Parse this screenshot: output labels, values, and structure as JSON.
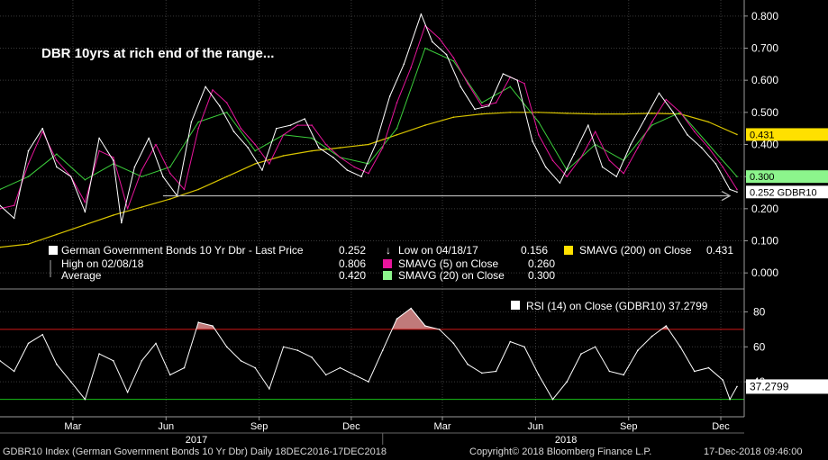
{
  "chart_data": [
    {
      "type": "line",
      "title": "DBR 10yrs at rich end of the range...",
      "ylim": [
        -0.05,
        0.85
      ],
      "yticks": [
        "0.800",
        "0.700",
        "0.600",
        "0.500",
        "0.400",
        "0.300",
        "0.200",
        "0.100",
        "0.000"
      ],
      "ytick_values": [
        0.8,
        0.7,
        0.6,
        0.5,
        0.4,
        0.3,
        0.2,
        0.1,
        0.0
      ],
      "x_range": [
        "2016-12-19",
        "2018-12-17"
      ],
      "series": [
        {
          "name": "German Government Bonds 10 Yr Dbr - Last Price",
          "color": "#ffffff",
          "value": "0.252",
          "x": [
            "2016-12-19",
            "2017-01-02",
            "2017-01-16",
            "2017-01-30",
            "2017-02-13",
            "2017-02-27",
            "2017-03-13",
            "2017-03-27",
            "2017-04-10",
            "2017-04-18",
            "2017-05-01",
            "2017-05-15",
            "2017-05-29",
            "2017-06-12",
            "2017-06-26",
            "2017-07-10",
            "2017-07-24",
            "2017-08-07",
            "2017-08-21",
            "2017-09-04",
            "2017-09-18",
            "2017-10-02",
            "2017-10-16",
            "2017-10-30",
            "2017-11-13",
            "2017-11-27",
            "2017-12-11",
            "2017-12-25",
            "2018-01-08",
            "2018-01-22",
            "2018-02-08",
            "2018-02-19",
            "2018-03-05",
            "2018-03-19",
            "2018-04-02",
            "2018-04-16",
            "2018-04-30",
            "2018-05-14",
            "2018-05-29",
            "2018-06-11",
            "2018-06-25",
            "2018-07-09",
            "2018-07-23",
            "2018-08-06",
            "2018-08-20",
            "2018-09-03",
            "2018-09-17",
            "2018-10-01",
            "2018-10-15",
            "2018-10-29",
            "2018-11-12",
            "2018-11-26",
            "2018-12-10",
            "2018-12-17"
          ],
          "values": [
            0.21,
            0.17,
            0.38,
            0.45,
            0.33,
            0.3,
            0.19,
            0.42,
            0.35,
            0.156,
            0.33,
            0.42,
            0.3,
            0.24,
            0.47,
            0.58,
            0.52,
            0.44,
            0.39,
            0.32,
            0.45,
            0.46,
            0.48,
            0.39,
            0.36,
            0.32,
            0.3,
            0.4,
            0.55,
            0.65,
            0.806,
            0.72,
            0.68,
            0.58,
            0.51,
            0.52,
            0.62,
            0.6,
            0.41,
            0.33,
            0.28,
            0.37,
            0.46,
            0.33,
            0.3,
            0.4,
            0.48,
            0.56,
            0.5,
            0.43,
            0.39,
            0.34,
            0.26,
            0.252
          ]
        },
        {
          "name": "SMAVG (5) on Close",
          "color": "#e8159c",
          "value": "0.260",
          "x": [
            "2016-12-19",
            "2017-01-02",
            "2017-01-16",
            "2017-01-30",
            "2017-02-13",
            "2017-02-27",
            "2017-03-13",
            "2017-03-27",
            "2017-04-10",
            "2017-04-24",
            "2017-05-08",
            "2017-05-22",
            "2017-06-05",
            "2017-06-19",
            "2017-07-03",
            "2017-07-17",
            "2017-07-31",
            "2017-08-14",
            "2017-08-28",
            "2017-09-11",
            "2017-09-25",
            "2017-10-09",
            "2017-10-23",
            "2017-11-06",
            "2017-11-20",
            "2017-12-04",
            "2017-12-18",
            "2018-01-01",
            "2018-01-15",
            "2018-01-29",
            "2018-02-12",
            "2018-02-26",
            "2018-03-12",
            "2018-03-26",
            "2018-04-09",
            "2018-04-23",
            "2018-05-07",
            "2018-05-21",
            "2018-06-04",
            "2018-06-18",
            "2018-07-02",
            "2018-07-16",
            "2018-07-30",
            "2018-08-13",
            "2018-08-27",
            "2018-09-10",
            "2018-09-24",
            "2018-10-08",
            "2018-10-22",
            "2018-11-05",
            "2018-11-19",
            "2018-12-03",
            "2018-12-17"
          ],
          "values": [
            0.2,
            0.21,
            0.34,
            0.44,
            0.35,
            0.3,
            0.22,
            0.38,
            0.36,
            0.2,
            0.32,
            0.4,
            0.31,
            0.26,
            0.45,
            0.57,
            0.53,
            0.45,
            0.4,
            0.34,
            0.43,
            0.46,
            0.46,
            0.4,
            0.36,
            0.33,
            0.31,
            0.39,
            0.53,
            0.64,
            0.77,
            0.73,
            0.67,
            0.59,
            0.52,
            0.53,
            0.61,
            0.59,
            0.43,
            0.35,
            0.3,
            0.36,
            0.44,
            0.35,
            0.31,
            0.39,
            0.47,
            0.54,
            0.5,
            0.44,
            0.39,
            0.33,
            0.26
          ]
        },
        {
          "name": "SMAVG (20) on Close",
          "color": "#3ccf3c",
          "value": "0.300",
          "x": [
            "2016-12-19",
            "2017-01-16",
            "2017-02-13",
            "2017-03-13",
            "2017-04-10",
            "2017-05-08",
            "2017-06-05",
            "2017-07-03",
            "2017-07-31",
            "2017-08-28",
            "2017-09-25",
            "2017-10-23",
            "2017-11-20",
            "2017-12-18",
            "2018-01-15",
            "2018-02-12",
            "2018-03-12",
            "2018-04-09",
            "2018-05-07",
            "2018-06-04",
            "2018-07-02",
            "2018-07-30",
            "2018-08-27",
            "2018-09-24",
            "2018-10-22",
            "2018-11-19",
            "2018-12-17"
          ],
          "values": [
            0.26,
            0.3,
            0.37,
            0.29,
            0.34,
            0.3,
            0.33,
            0.47,
            0.5,
            0.38,
            0.43,
            0.42,
            0.36,
            0.34,
            0.45,
            0.7,
            0.66,
            0.53,
            0.58,
            0.47,
            0.32,
            0.4,
            0.35,
            0.46,
            0.5,
            0.4,
            0.3
          ]
        },
        {
          "name": "SMAVG (200) on Close",
          "color": "#d8c400",
          "value": "0.431",
          "x": [
            "2016-12-19",
            "2017-01-16",
            "2017-02-13",
            "2017-03-13",
            "2017-04-10",
            "2017-05-08",
            "2017-06-05",
            "2017-07-03",
            "2017-07-31",
            "2017-08-28",
            "2017-09-25",
            "2017-10-23",
            "2017-11-20",
            "2017-12-18",
            "2018-01-15",
            "2018-02-12",
            "2018-03-12",
            "2018-04-09",
            "2018-05-07",
            "2018-06-04",
            "2018-07-02",
            "2018-07-30",
            "2018-08-27",
            "2018-09-24",
            "2018-10-22",
            "2018-11-19",
            "2018-12-17"
          ],
          "values": [
            0.08,
            0.09,
            0.12,
            0.15,
            0.18,
            0.205,
            0.23,
            0.26,
            0.3,
            0.34,
            0.365,
            0.38,
            0.39,
            0.4,
            0.43,
            0.46,
            0.485,
            0.495,
            0.5,
            0.5,
            0.497,
            0.495,
            0.495,
            0.497,
            0.495,
            0.47,
            0.431
          ]
        }
      ],
      "support_line": {
        "x": [
          "2017-05-29",
          "2018-12-10"
        ],
        "value": 0.24
      },
      "legend": {
        "last_price_label": "German Government Bonds 10 Yr Dbr - Last Price",
        "last_price_value": "0.252",
        "high_label": "High on 02/08/18",
        "high_value": "0.806",
        "average_label": "Average",
        "average_value": "0.420",
        "low_label": "Low on 04/18/17",
        "low_value": "0.156",
        "sma5_label": "SMAVG (5)  on Close",
        "sma5_value": "0.260",
        "sma20_label": "SMAVG (20)  on Close",
        "sma20_value": "0.300",
        "sma200_label": "SMAVG (200)  on Close",
        "sma200_value": "0.431"
      },
      "tags": [
        {
          "label": "0.431",
          "value": 0.431,
          "bg": "#ffe000",
          "fg": "#000000"
        },
        {
          "label": "0.300",
          "value": 0.3,
          "bg": "#8cf58c",
          "fg": "#000000"
        },
        {
          "label": "0.252 GDBR10",
          "value": 0.252,
          "bg": "#ffffff",
          "fg": "#000000"
        }
      ]
    },
    {
      "type": "line",
      "legend_label": "RSI (14)  on Close (GDBR10) 37.2799",
      "ylim": [
        20,
        90
      ],
      "yticks": [
        "80",
        "60",
        "40"
      ],
      "ytick_values": [
        80,
        60,
        40
      ],
      "overbought": 70,
      "oversold": 30,
      "tag": {
        "label": "37.2799",
        "value": 37.28
      },
      "x": [
        "2016-12-19",
        "2017-01-02",
        "2017-01-16",
        "2017-01-30",
        "2017-02-13",
        "2017-02-27",
        "2017-03-13",
        "2017-03-27",
        "2017-04-10",
        "2017-04-24",
        "2017-05-08",
        "2017-05-22",
        "2017-06-05",
        "2017-06-19",
        "2017-07-03",
        "2017-07-17",
        "2017-07-31",
        "2017-08-14",
        "2017-08-28",
        "2017-09-11",
        "2017-09-25",
        "2017-10-09",
        "2017-10-23",
        "2017-11-06",
        "2017-11-20",
        "2017-12-04",
        "2017-12-18",
        "2018-01-01",
        "2018-01-15",
        "2018-01-29",
        "2018-02-12",
        "2018-02-26",
        "2018-03-12",
        "2018-03-26",
        "2018-04-09",
        "2018-04-23",
        "2018-05-07",
        "2018-05-21",
        "2018-06-04",
        "2018-06-18",
        "2018-07-02",
        "2018-07-16",
        "2018-07-30",
        "2018-08-13",
        "2018-08-27",
        "2018-09-10",
        "2018-09-24",
        "2018-10-08",
        "2018-10-22",
        "2018-11-05",
        "2018-11-19",
        "2018-12-03",
        "2018-12-10",
        "2018-12-17"
      ],
      "values": [
        52,
        46,
        62,
        67,
        50,
        40,
        30,
        56,
        52,
        34,
        52,
        62,
        44,
        48,
        74,
        72,
        60,
        52,
        48,
        36,
        60,
        58,
        54,
        44,
        48,
        44,
        40,
        58,
        76,
        82,
        72,
        70,
        62,
        50,
        45,
        46,
        63,
        60,
        44,
        30,
        40,
        56,
        60,
        46,
        44,
        58,
        66,
        72,
        60,
        46,
        48,
        41,
        30,
        37.28
      ]
    }
  ],
  "x_axis": {
    "months": [
      {
        "label": "Mar",
        "date": "2017-03-01"
      },
      {
        "label": "Jun",
        "date": "2017-06-01"
      },
      {
        "label": "Sep",
        "date": "2017-09-01"
      },
      {
        "label": "Dec",
        "date": "2017-12-01"
      },
      {
        "label": "Mar",
        "date": "2018-03-01"
      },
      {
        "label": "Jun",
        "date": "2018-06-01"
      },
      {
        "label": "Sep",
        "date": "2018-09-01"
      },
      {
        "label": "Dec",
        "date": "2018-12-01"
      }
    ],
    "years": [
      {
        "label": "2017",
        "date": "2017-07-01"
      },
      {
        "label": "2018",
        "date": "2018-07-01"
      }
    ]
  },
  "footer": {
    "left": "GDBR10 Index (German Government Bonds 10 Yr Dbr)  Daily 18DEC2016-17DEC2018",
    "copyright": "Copyright© 2018 Bloomberg Finance L.P.",
    "timestamp": "17-Dec-2018 09:46:00"
  }
}
